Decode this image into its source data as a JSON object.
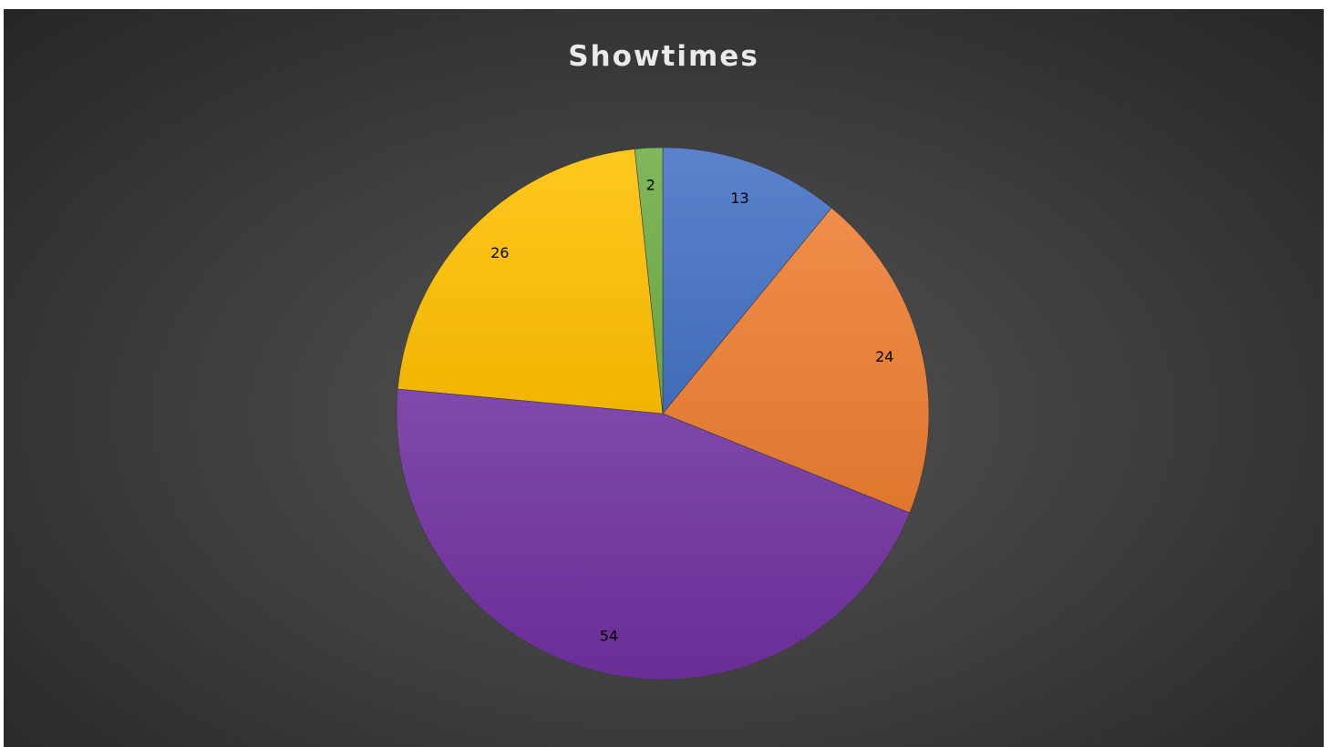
{
  "chart_data": {
    "type": "pie",
    "title": "Showtimes",
    "values": [
      13,
      24,
      54,
      26,
      2
    ],
    "data_labels": [
      "13",
      "24",
      "54",
      "26",
      "2"
    ],
    "colors": [
      "#4472C4",
      "#ED7D31",
      "#7030A0",
      "#FFC000",
      "#70AD47"
    ],
    "start_angle_deg": 0,
    "direction": "clockwise",
    "legend": "none"
  }
}
